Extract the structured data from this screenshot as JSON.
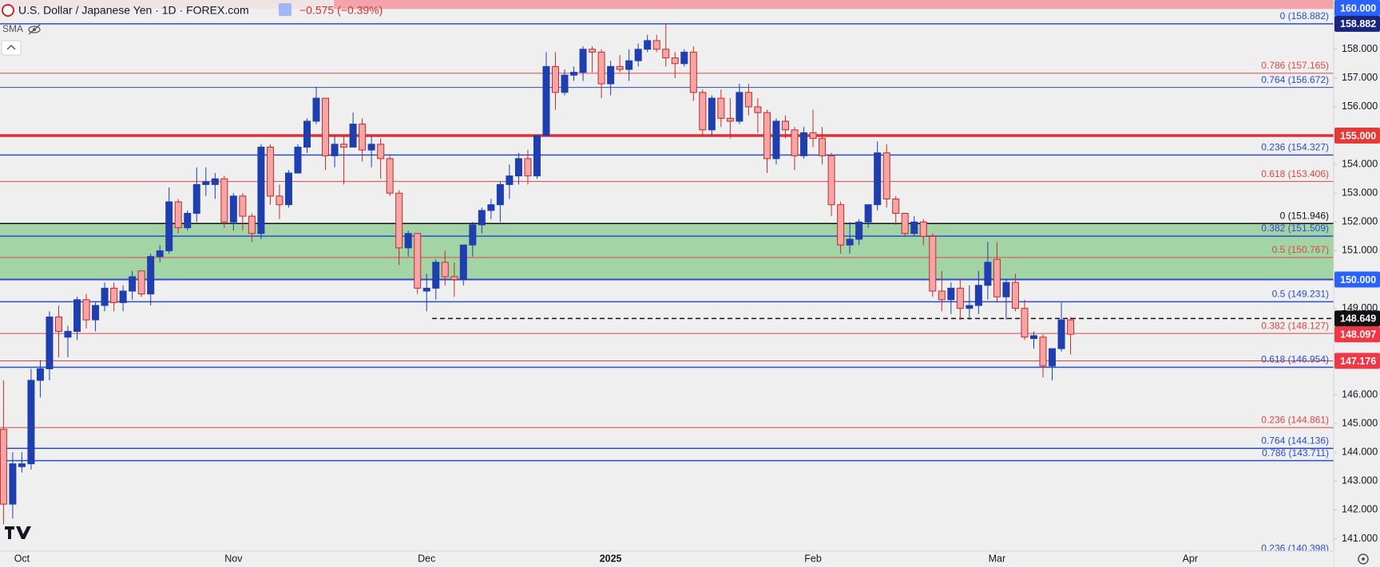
{
  "chart_data": {
    "type": "candlestick",
    "title": "U.S. Dollar / Japanese Yen · 1D · FOREX.com",
    "change_label": "−0.575 (−0.39%)",
    "indicator_label": "SMA",
    "up_color": "#1f3fae",
    "down_color": "#f5a5a5",
    "down_border": "#c22b2b",
    "xlim": [
      -0.38,
      144.6
    ],
    "xticks": [
      {
        "value": 2,
        "label": "Oct"
      },
      {
        "value": 25,
        "label": "Nov"
      },
      {
        "value": 46,
        "label": "Dec"
      },
      {
        "value": 66,
        "label": "2025"
      },
      {
        "value": 88,
        "label": "Feb"
      },
      {
        "value": 108,
        "label": "Mar"
      },
      {
        "value": 129,
        "label": "Apr"
      }
    ],
    "ylim": [
      140.57,
      159.71
    ],
    "yticks": [
      {
        "value": 141,
        "label": "141.000"
      },
      {
        "value": 142,
        "label": "142.000"
      },
      {
        "value": 143,
        "label": "143.000"
      },
      {
        "value": 144,
        "label": "144.000"
      },
      {
        "value": 145,
        "label": "145.000"
      },
      {
        "value": 146,
        "label": "146.000"
      },
      {
        "value": 147,
        "label": "147.000"
      },
      {
        "value": 148,
        "label": "148.000"
      },
      {
        "value": 149,
        "label": "149.000"
      },
      {
        "value": 150,
        "label": "150.000"
      },
      {
        "value": 151,
        "label": "151.000"
      },
      {
        "value": 152,
        "label": "152.000"
      },
      {
        "value": 153,
        "label": "153.000"
      },
      {
        "value": 154,
        "label": "154.000"
      },
      {
        "value": 155,
        "label": "155.000"
      },
      {
        "value": 156,
        "label": "156.000"
      },
      {
        "value": 157,
        "label": "157.000"
      },
      {
        "value": 158,
        "label": "158.000"
      }
    ],
    "grid": false,
    "open": [
      144.8,
      142.2,
      143.5,
      143.6,
      146.5,
      146.9,
      148.7,
      148.0,
      148.2,
      149.3,
      148.6,
      149.1,
      149.7,
      149.2,
      149.6,
      150.3,
      149.5,
      150.8,
      151.0,
      152.7,
      151.8,
      152.3,
      153.3,
      153.3,
      153.5,
      152.0,
      152.9,
      152.2,
      151.6,
      154.6,
      152.9,
      152.6,
      153.7,
      154.6,
      155.5,
      156.3,
      154.3,
      154.7,
      154.6,
      155.4,
      154.5,
      154.7,
      154.2,
      153.0,
      151.1,
      151.6,
      149.6,
      149.7,
      150.6,
      150.1,
      150.0,
      151.2,
      151.9,
      152.4,
      152.6,
      153.3,
      153.6,
      154.2,
      153.6,
      155.0,
      157.4,
      156.5,
      157.1,
      157.2,
      158.0,
      157.9,
      156.8,
      157.4,
      157.3,
      157.6,
      158.0,
      158.3,
      158.0,
      157.7,
      157.5,
      157.9,
      156.5,
      155.2,
      156.3,
      155.6,
      155.5,
      156.5,
      156.0,
      155.8,
      154.2,
      155.5,
      155.2,
      154.3,
      155.1,
      154.9,
      154.3,
      152.6,
      151.2,
      151.4,
      152.0,
      152.6,
      154.4,
      152.8,
      152.3,
      151.6,
      152.0,
      151.5,
      149.6,
      149.3,
      149.7,
      149.0,
      149.1,
      149.8,
      150.7,
      149.4,
      149.9,
      149.0,
      147.95,
      148.0,
      147.0,
      147.6,
      148.6
    ],
    "high": [
      146.5,
      144.0,
      144.0,
      146.9,
      147.2,
      148.9,
      149.1,
      148.4,
      149.4,
      149.5,
      149.2,
      149.9,
      149.9,
      149.8,
      150.3,
      150.3,
      150.9,
      151.2,
      153.2,
      152.8,
      152.4,
      153.9,
      153.9,
      153.7,
      153.6,
      153.0,
      153.0,
      152.3,
      154.7,
      154.7,
      153.3,
      153.8,
      154.7,
      155.6,
      156.7,
      156.3,
      155.0,
      155.0,
      155.8,
      155.6,
      155.0,
      154.9,
      154.3,
      153.1,
      151.7,
      151.6,
      150.2,
      150.7,
      151.0,
      150.6,
      151.2,
      152.0,
      152.5,
      152.8,
      153.4,
      154.0,
      154.4,
      154.5,
      155.0,
      157.9,
      157.9,
      157.3,
      157.4,
      158.1,
      158.1,
      158.0,
      157.6,
      157.8,
      158.0,
      158.2,
      158.5,
      158.5,
      158.88,
      157.9,
      158.0,
      158.1,
      156.6,
      156.4,
      156.6,
      156.3,
      156.8,
      156.8,
      156.3,
      155.9,
      155.6,
      155.7,
      155.3,
      155.3,
      155.9,
      155.3,
      154.4,
      152.7,
      152.0,
      152.1,
      152.6,
      154.8,
      154.7,
      152.9,
      152.3,
      152.2,
      152.1,
      151.6,
      150.3,
      149.9,
      150.0,
      149.8,
      150.3,
      151.3,
      151.3,
      150.0,
      150.2,
      149.3,
      148.2,
      148.1,
      147.6,
      149.2,
      148.7
    ],
    "low": [
      141.5,
      141.7,
      143.3,
      143.4,
      145.9,
      146.5,
      147.3,
      147.3,
      147.9,
      148.3,
      148.2,
      148.9,
      148.9,
      148.9,
      149.3,
      149.4,
      149.1,
      150.6,
      150.9,
      151.6,
      151.7,
      152.0,
      152.9,
      152.8,
      151.8,
      151.7,
      151.7,
      151.3,
      151.4,
      152.6,
      152.1,
      152.5,
      153.7,
      154.4,
      155.4,
      153.8,
      153.9,
      153.3,
      154.6,
      154.1,
      153.9,
      153.5,
      152.9,
      150.5,
      150.8,
      149.5,
      148.9,
      149.3,
      149.8,
      149.4,
      149.8,
      150.8,
      151.6,
      152.1,
      152.0,
      152.8,
      153.3,
      153.3,
      153.5,
      155.0,
      155.9,
      156.4,
      156.9,
      156.9,
      157.2,
      156.3,
      156.4,
      157.2,
      156.9,
      157.4,
      157.9,
      157.9,
      157.4,
      157.0,
      157.4,
      156.2,
      155.0,
      155.0,
      155.3,
      154.9,
      155.4,
      155.7,
      155.1,
      153.7,
      154.0,
      154.9,
      153.8,
      154.2,
      154.6,
      154.0,
      152.2,
      150.9,
      150.9,
      151.2,
      151.8,
      152.4,
      152.5,
      151.9,
      151.5,
      151.5,
      151.2,
      149.4,
      148.9,
      148.8,
      148.6,
      148.6,
      148.8,
      149.3,
      149.2,
      148.6,
      148.9,
      147.9,
      147.6,
      146.6,
      146.5,
      147.5,
      147.4
    ],
    "close": [
      142.2,
      143.6,
      143.6,
      146.5,
      146.9,
      148.7,
      148.2,
      148.2,
      149.3,
      148.6,
      149.1,
      149.7,
      149.2,
      149.6,
      150.1,
      149.5,
      150.8,
      151.0,
      152.7,
      151.8,
      152.3,
      153.3,
      153.4,
      153.5,
      152.0,
      152.9,
      152.2,
      151.6,
      154.6,
      152.9,
      152.6,
      153.7,
      154.6,
      155.5,
      156.3,
      154.3,
      154.7,
      154.6,
      155.4,
      154.5,
      154.7,
      154.2,
      153.0,
      151.1,
      151.6,
      149.7,
      149.7,
      150.6,
      150.1,
      150.0,
      151.2,
      151.9,
      152.4,
      152.6,
      153.3,
      153.6,
      154.2,
      153.6,
      155.0,
      157.4,
      156.5,
      157.1,
      157.2,
      158.0,
      157.9,
      156.8,
      157.4,
      157.3,
      157.6,
      158.0,
      158.3,
      158.0,
      157.7,
      157.5,
      157.9,
      156.5,
      155.2,
      156.3,
      155.6,
      155.5,
      156.5,
      156.0,
      155.8,
      154.2,
      155.5,
      155.2,
      154.3,
      155.1,
      154.9,
      154.3,
      152.6,
      151.2,
      151.4,
      152.0,
      152.6,
      154.4,
      152.8,
      152.3,
      151.6,
      152.0,
      151.5,
      149.6,
      149.3,
      149.7,
      149.0,
      149.1,
      149.8,
      150.6,
      149.4,
      149.9,
      149.0,
      148.0,
      148.05,
      147.0,
      147.6,
      148.6,
      148.1
    ],
    "zones": [
      {
        "from": 150,
        "to": 151.946,
        "color": "#a3d4a5"
      },
      {
        "from": 159.4,
        "to": 160,
        "color": "#f3a3aa"
      }
    ],
    "levels": [
      {
        "value": 158.882,
        "label": "0 (158.882)",
        "color": "#2a4dd0",
        "width": 1.5
      },
      {
        "value": 157.165,
        "label": "0.786 (157.165)",
        "color": "#e04545",
        "width": 1
      },
      {
        "value": 156.672,
        "label": "0.764 (156.672)",
        "color": "#2a4dd0",
        "width": 1
      },
      {
        "value": 155,
        "color": "#e0303a",
        "width": 3.5
      },
      {
        "value": 154.327,
        "label": "0.236 (154.327)",
        "color": "#2a4dd0",
        "width": 1.5
      },
      {
        "value": 153.406,
        "label": "0.618 (153.406)",
        "color": "#e04545",
        "width": 1
      },
      {
        "value": 151.946,
        "label": "0 (151.946)",
        "color": "#111111",
        "width": 1.5
      },
      {
        "value": 151.509,
        "label": "0.382 (151.509)",
        "color": "#2a4dd0",
        "width": 1.5
      },
      {
        "value": 150.767,
        "label": "0.5 (150.767)",
        "color": "#e04545",
        "width": 1
      },
      {
        "value": 150,
        "color": "#2a4dd0",
        "width": 2
      },
      {
        "value": 149.231,
        "label": "0.5 (149.231)",
        "color": "#2a4dd0",
        "width": 1.5
      },
      {
        "value": 148.649,
        "color": "#111111",
        "width": 1.5,
        "dash": true
      },
      {
        "value": 148.127,
        "label": "0.382 (148.127)",
        "color": "#e04545",
        "width": 1
      },
      {
        "value": 147.176,
        "color": "#e04545",
        "width": 1
      },
      {
        "value": 146.954,
        "label": "0.618 (146.954)",
        "color": "#2a4dd0",
        "width": 1.5
      },
      {
        "value": 144.861,
        "label": "0.236 (144.861)",
        "color": "#e04545",
        "width": 1
      },
      {
        "value": 144.136,
        "label": "0.764 (144.136)",
        "color": "#2a4dd0",
        "width": 1.5
      },
      {
        "value": 143.711,
        "label": "0.786 (143.711)",
        "color": "#2a4dd0",
        "width": 1.5
      },
      {
        "value": 140.398,
        "label": "0.236 (140.398)",
        "color": "#2a4dd0",
        "width": 1
      }
    ],
    "price_labels": [
      {
        "value": 160,
        "label": "160.000",
        "color": "#2962ff"
      },
      {
        "value": 158.882,
        "label": "158.882",
        "color": "#1a237e"
      },
      {
        "value": 155,
        "label": "155.000",
        "color": "#e53935"
      },
      {
        "value": 150,
        "label": "150.000",
        "color": "#2962ff"
      },
      {
        "value": 148.649,
        "label": "148.649",
        "color": "#111111"
      },
      {
        "value": 148.097,
        "label": "148.097",
        "color": "#f23645"
      },
      {
        "value": 147.176,
        "label": "147.176",
        "color": "#f23645"
      }
    ]
  }
}
